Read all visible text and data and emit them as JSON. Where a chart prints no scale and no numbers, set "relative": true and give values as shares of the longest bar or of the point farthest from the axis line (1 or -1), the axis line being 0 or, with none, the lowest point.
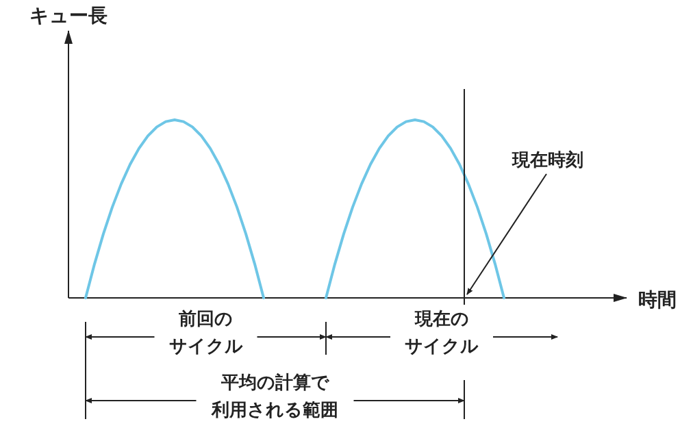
{
  "chart_data": {
    "type": "line",
    "relative": true,
    "xlabel": "時間",
    "ylabel": "キュー長",
    "categories": [
      null,
      null,
      null,
      null,
      null,
      null,
      null,
      null,
      null,
      null,
      null,
      null,
      null,
      null,
      null,
      null,
      null,
      null,
      null,
      null,
      null,
      null,
      null,
      null,
      null,
      null,
      null,
      null,
      null,
      null,
      null,
      null,
      null,
      null,
      null,
      null,
      null,
      null,
      null,
      null,
      null,
      null,
      null,
      null,
      null,
      null,
      null,
      null,
      null,
      null,
      null,
      null,
      null,
      null
    ],
    "series": [
      {
        "color": "#6ec6e6",
        "values": [
          0,
          0.19,
          0.36,
          0.51,
          0.64,
          0.75,
          0.84,
          0.91,
          0.96,
          0.99,
          1,
          0.99,
          0.96,
          0.91,
          0.84,
          0.75,
          0.64,
          0.51,
          0.36,
          0.19,
          0,
          null,
          null,
          null,
          null,
          null,
          null,
          null,
          null,
          null,
          null,
          null,
          null,
          null,
          null,
          null,
          null,
          null,
          null,
          null,
          null,
          null,
          null,
          null,
          null,
          null,
          null,
          null,
          null,
          null,
          null,
          null,
          null,
          null
        ]
      },
      {
        "color": "#6ec6e6",
        "values": [
          null,
          null,
          null,
          null,
          null,
          null,
          null,
          null,
          null,
          null,
          null,
          null,
          null,
          null,
          null,
          null,
          null,
          null,
          null,
          null,
          null,
          null,
          null,
          null,
          null,
          null,
          null,
          0,
          0.19,
          0.36,
          0.51,
          0.64,
          0.75,
          0.84,
          0.91,
          0.96,
          0.99,
          1,
          0.99,
          0.96,
          0.91,
          0.84,
          0.75,
          0.64,
          0.51,
          0.36,
          0.19,
          0,
          null,
          null,
          null,
          null,
          null,
          null
        ]
      }
    ],
    "annotations": [
      "現在時刻",
      "前回のサイクル",
      "現在のサイクル",
      "平均の計算で利用される範囲"
    ]
  }
}
